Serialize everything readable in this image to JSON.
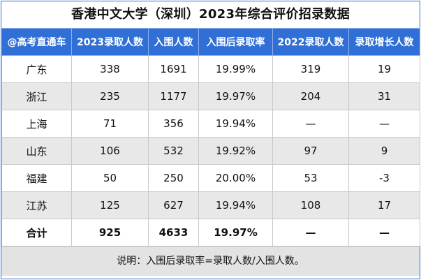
{
  "title": "香港中文大学（深圳）2023年综合评价招录数据",
  "columns": [
    "@高考直通车",
    "2023录取人数",
    "入围人数",
    "入围后录取率",
    "2022录取人数",
    "录取增长人数"
  ],
  "rows": [
    [
      "广东",
      "338",
      "1691",
      "19.99%",
      "319",
      "19"
    ],
    [
      "浙江",
      "235",
      "1177",
      "19.97%",
      "204",
      "31"
    ],
    [
      "上海",
      "71",
      "356",
      "19.94%",
      "—",
      "—"
    ],
    [
      "山东",
      "106",
      "532",
      "19.92%",
      "97",
      "9"
    ],
    [
      "福建",
      "50",
      "250",
      "20.00%",
      "53",
      "-3"
    ],
    [
      "江苏",
      "125",
      "627",
      "19.94%",
      "108",
      "17"
    ]
  ],
  "total": [
    "合计",
    "925",
    "4633",
    "19.97%",
    "—",
    "—"
  ],
  "note": "说明：入围后录取率=录取人数/入围人数。",
  "colors": {
    "header_bg": "#2f6fd6",
    "alt_row": "#e8e8e8",
    "note_bg": "#e3e3e3"
  }
}
